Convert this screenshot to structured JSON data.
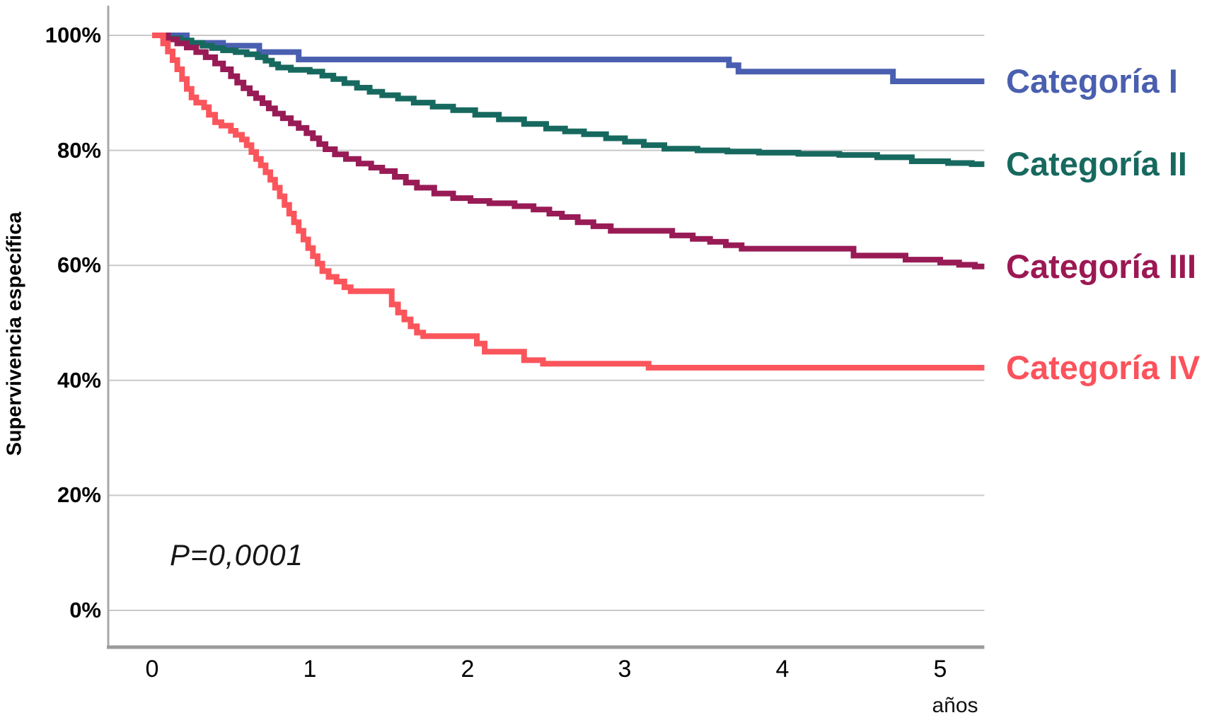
{
  "y_axis": {
    "title": "Supervivencia específica",
    "ticks": [
      {
        "label": "100%",
        "value": 100
      },
      {
        "label": "80%",
        "value": 80
      },
      {
        "label": "60%",
        "value": 60
      },
      {
        "label": "40%",
        "value": 40
      },
      {
        "label": "20%",
        "value": 20
      },
      {
        "label": "0%",
        "value": 0
      }
    ]
  },
  "x_axis": {
    "unit_label": "años",
    "ticks": [
      {
        "label": "0",
        "value": 0
      },
      {
        "label": "1",
        "value": 1
      },
      {
        "label": "2",
        "value": 2
      },
      {
        "label": "3",
        "value": 3
      },
      {
        "label": "4",
        "value": 4
      },
      {
        "label": "5",
        "value": 5
      }
    ]
  },
  "annotation": {
    "p_value": "P=0,0001"
  },
  "legend": {
    "items": [
      {
        "id": "categoria-i",
        "label": "Categoría I",
        "color": "#4a5fae"
      },
      {
        "id": "categoria-ii",
        "label": "Categoría II",
        "color": "#17695f"
      },
      {
        "id": "categoria-iii",
        "label": "Categoría III",
        "color": "#9c1853"
      },
      {
        "id": "categoria-iv",
        "label": "Categoría IV",
        "color": "#fb525b"
      }
    ]
  },
  "colors": {
    "gridline": "#c9c9c9",
    "y_axis_line": "#a8a8a8",
    "x_axis_line": "#9b9b9b",
    "background": "#ffffff"
  },
  "chart_data": {
    "type": "line",
    "subtype": "kaplan-meier-step-survival",
    "title": "",
    "xlabel": "años",
    "ylabel": "Supervivencia específica",
    "xlim": [
      0,
      5.28
    ],
    "ylim": [
      0,
      100
    ],
    "x_ticks": [
      0,
      1,
      2,
      3,
      4,
      5
    ],
    "y_ticks_pct": [
      0,
      20,
      40,
      60,
      80,
      100
    ],
    "grid": "horizontal",
    "legend_position": "right-outside-at-curve-end",
    "annotation": "P=0,0001",
    "units": "steps are [years, survival_percent], value holds from t onward",
    "series": [
      {
        "id": "categoria-i",
        "name": "Categoría I",
        "color": "#4a5fb0",
        "end_value_pct": 92.0,
        "steps": [
          [
            0,
            100
          ],
          [
            0.22,
            98.7
          ],
          [
            0.45,
            98.2
          ],
          [
            0.68,
            97.1
          ],
          [
            0.93,
            95.8
          ],
          [
            3.66,
            94.8
          ],
          [
            3.72,
            93.7
          ],
          [
            4.7,
            92.0
          ]
        ]
      },
      {
        "id": "categoria-ii",
        "name": "Categoría II",
        "color": "#17695f",
        "end_value_pct": 77.6,
        "steps": [
          [
            0,
            100
          ],
          [
            0.1,
            99.5
          ],
          [
            0.18,
            99.1
          ],
          [
            0.25,
            98.7
          ],
          [
            0.32,
            98.2
          ],
          [
            0.38,
            97.8
          ],
          [
            0.45,
            97.4
          ],
          [
            0.53,
            97.1
          ],
          [
            0.6,
            96.7
          ],
          [
            0.67,
            96.2
          ],
          [
            0.72,
            95.6
          ],
          [
            0.76,
            95.0
          ],
          [
            0.8,
            94.4
          ],
          [
            0.88,
            94.0
          ],
          [
            1.0,
            93.7
          ],
          [
            1.08,
            93.0
          ],
          [
            1.15,
            92.4
          ],
          [
            1.22,
            91.7
          ],
          [
            1.3,
            90.9
          ],
          [
            1.38,
            90.2
          ],
          [
            1.46,
            89.6
          ],
          [
            1.56,
            89.0
          ],
          [
            1.66,
            88.3
          ],
          [
            1.78,
            87.6
          ],
          [
            1.91,
            87.0
          ],
          [
            2.05,
            86.2
          ],
          [
            2.2,
            85.4
          ],
          [
            2.36,
            84.6
          ],
          [
            2.5,
            83.8
          ],
          [
            2.62,
            83.3
          ],
          [
            2.74,
            82.8
          ],
          [
            2.88,
            82.1
          ],
          [
            3.0,
            81.5
          ],
          [
            3.12,
            80.9
          ],
          [
            3.25,
            80.3
          ],
          [
            3.46,
            80.0
          ],
          [
            3.65,
            79.8
          ],
          [
            3.85,
            79.6
          ],
          [
            4.1,
            79.4
          ],
          [
            4.36,
            79.2
          ],
          [
            4.6,
            78.8
          ],
          [
            4.82,
            78.1
          ],
          [
            5.05,
            77.8
          ],
          [
            5.2,
            77.6
          ]
        ]
      },
      {
        "id": "categoria-iii",
        "name": "Categoría III",
        "color": "#981b56",
        "end_value_pct": 59.8,
        "steps": [
          [
            0,
            100
          ],
          [
            0.1,
            99.3
          ],
          [
            0.16,
            98.6
          ],
          [
            0.22,
            97.9
          ],
          [
            0.28,
            97.1
          ],
          [
            0.34,
            96.2
          ],
          [
            0.4,
            95.1
          ],
          [
            0.45,
            94.1
          ],
          [
            0.5,
            92.9
          ],
          [
            0.54,
            91.8
          ],
          [
            0.58,
            90.8
          ],
          [
            0.62,
            89.9
          ],
          [
            0.66,
            89.1
          ],
          [
            0.7,
            88.2
          ],
          [
            0.74,
            87.3
          ],
          [
            0.78,
            86.4
          ],
          [
            0.83,
            85.6
          ],
          [
            0.88,
            84.7
          ],
          [
            0.93,
            83.9
          ],
          [
            0.98,
            83.0
          ],
          [
            1.02,
            82.1
          ],
          [
            1.06,
            81.1
          ],
          [
            1.1,
            80.2
          ],
          [
            1.16,
            79.3
          ],
          [
            1.23,
            78.5
          ],
          [
            1.31,
            77.7
          ],
          [
            1.39,
            77.0
          ],
          [
            1.46,
            76.4
          ],
          [
            1.54,
            75.4
          ],
          [
            1.61,
            74.4
          ],
          [
            1.68,
            73.5
          ],
          [
            1.79,
            72.5
          ],
          [
            1.91,
            71.7
          ],
          [
            2.02,
            71.2
          ],
          [
            2.14,
            70.8
          ],
          [
            2.3,
            70.3
          ],
          [
            2.42,
            69.7
          ],
          [
            2.52,
            69.0
          ],
          [
            2.6,
            68.4
          ],
          [
            2.7,
            67.5
          ],
          [
            2.8,
            66.8
          ],
          [
            2.91,
            66.0
          ],
          [
            3.3,
            65.2
          ],
          [
            3.43,
            64.6
          ],
          [
            3.54,
            64.1
          ],
          [
            3.64,
            63.5
          ],
          [
            3.74,
            62.9
          ],
          [
            4.45,
            61.7
          ],
          [
            4.78,
            61.0
          ],
          [
            5.0,
            60.5
          ],
          [
            5.12,
            60.1
          ],
          [
            5.22,
            59.8
          ]
        ]
      },
      {
        "id": "categoria-iv",
        "name": "Categoría IV",
        "color": "#fb555c",
        "end_value_pct": 42.2,
        "steps": [
          [
            0,
            100
          ],
          [
            0.07,
            98.6
          ],
          [
            0.1,
            97.2
          ],
          [
            0.13,
            95.7
          ],
          [
            0.16,
            94.1
          ],
          [
            0.19,
            92.4
          ],
          [
            0.22,
            90.7
          ],
          [
            0.25,
            89.2
          ],
          [
            0.28,
            88.3
          ],
          [
            0.33,
            87.5
          ],
          [
            0.36,
            86.2
          ],
          [
            0.4,
            84.9
          ],
          [
            0.44,
            84.3
          ],
          [
            0.5,
            83.4
          ],
          [
            0.53,
            82.7
          ],
          [
            0.57,
            81.9
          ],
          [
            0.6,
            80.9
          ],
          [
            0.63,
            79.7
          ],
          [
            0.66,
            78.5
          ],
          [
            0.69,
            77.4
          ],
          [
            0.72,
            76.2
          ],
          [
            0.75,
            74.9
          ],
          [
            0.78,
            73.5
          ],
          [
            0.81,
            72.0
          ],
          [
            0.84,
            70.5
          ],
          [
            0.87,
            69.0
          ],
          [
            0.9,
            67.5
          ],
          [
            0.93,
            66.0
          ],
          [
            0.96,
            64.5
          ],
          [
            0.99,
            63.0
          ],
          [
            1.02,
            61.6
          ],
          [
            1.05,
            60.3
          ],
          [
            1.08,
            59.0
          ],
          [
            1.12,
            58.0
          ],
          [
            1.17,
            57.2
          ],
          [
            1.22,
            56.2
          ],
          [
            1.26,
            55.5
          ],
          [
            1.52,
            53.2
          ],
          [
            1.56,
            51.8
          ],
          [
            1.6,
            50.6
          ],
          [
            1.64,
            49.4
          ],
          [
            1.68,
            48.3
          ],
          [
            1.72,
            47.7
          ],
          [
            2.06,
            46.4
          ],
          [
            2.11,
            45.0
          ],
          [
            2.36,
            43.5
          ],
          [
            2.48,
            42.9
          ],
          [
            3.15,
            42.2
          ]
        ]
      }
    ]
  }
}
